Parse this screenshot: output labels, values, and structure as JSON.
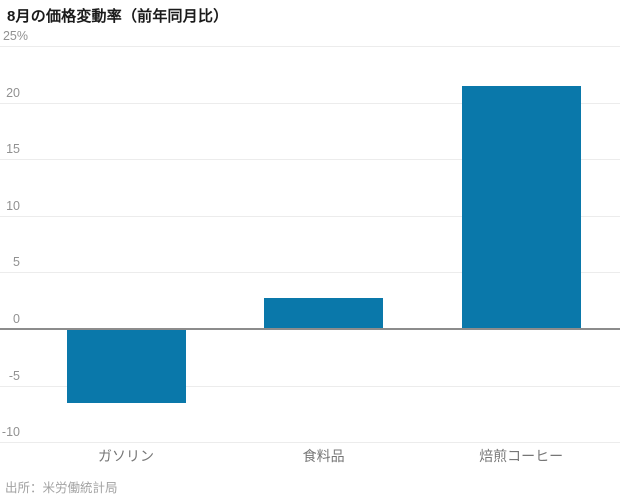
{
  "page": {
    "source": "出所：米労働統計局"
  },
  "chart_data": {
    "type": "bar",
    "title": "8月の価格変動率（前年同月比）",
    "categories": [
      "ガソリン",
      "食料品",
      "焙煎コーヒー"
    ],
    "values": [
      -6.5,
      2.7,
      21.5
    ],
    "xlabel": "",
    "ylabel": "",
    "ylim": [
      -10,
      25
    ],
    "yticks": [
      25,
      20,
      15,
      10,
      5,
      0,
      -5,
      -10
    ],
    "ytick_labels": [
      "25%",
      "20",
      "15",
      "10",
      "5",
      "0",
      "-5",
      "-10"
    ],
    "grid": true,
    "legend": false,
    "bar_color": "#0a78aa",
    "zero_line_color": "#8c8c8c",
    "gridline_color": "#ececec"
  }
}
